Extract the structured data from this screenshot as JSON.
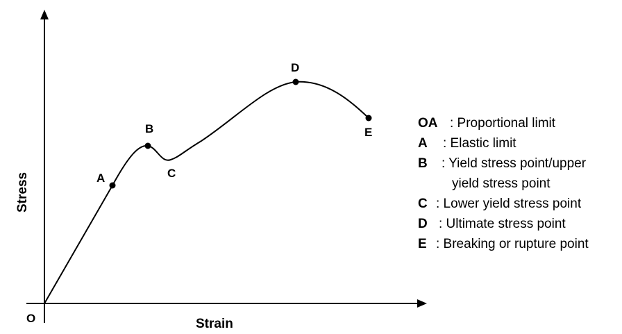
{
  "axes": {
    "x_title": "Strain",
    "y_title": "Stress",
    "origin": "O"
  },
  "points": {
    "A": "A",
    "B": "B",
    "C": "C",
    "D": "D",
    "E": "E"
  },
  "legend": [
    {
      "key": "OA",
      "text": ": Proportional limit"
    },
    {
      "key": "A",
      "text": ": Elastic limit"
    },
    {
      "key": "B",
      "text": ": Yield stress point/upper",
      "cont": "yield stress point"
    },
    {
      "key": "C",
      "text": ": Lower yield stress point"
    },
    {
      "key": "D",
      "text": ": Ultimate stress point"
    },
    {
      "key": "E",
      "text": ": Breaking or rupture point"
    }
  ]
}
